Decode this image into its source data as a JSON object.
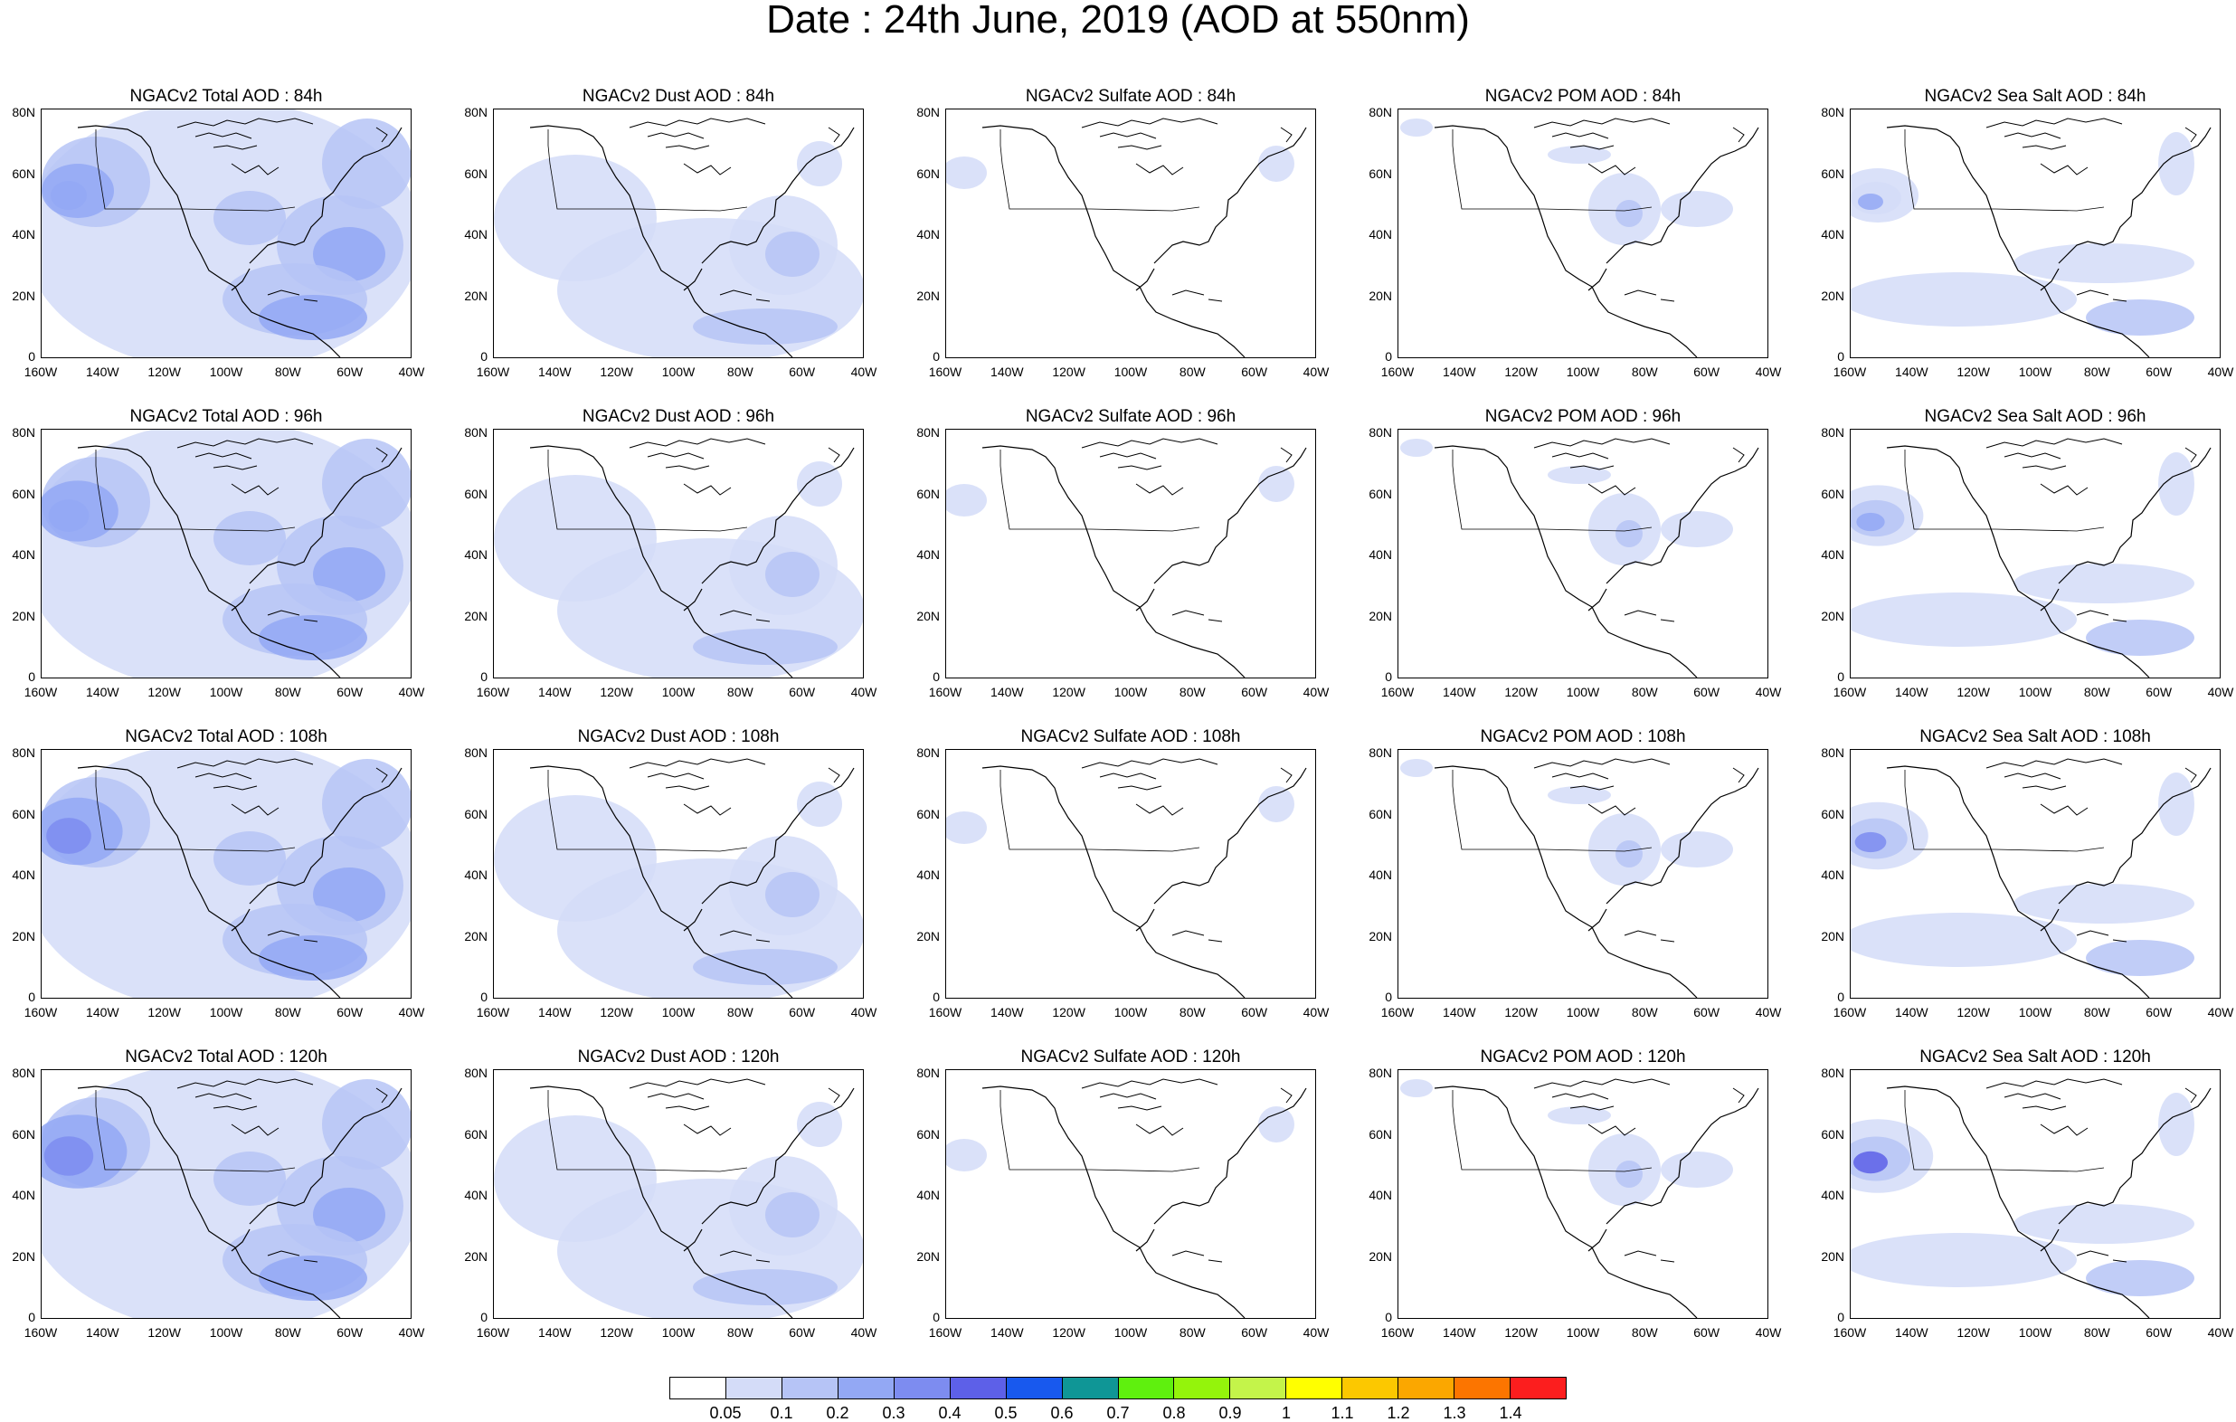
{
  "title": "Date : 24th June, 2019 (AOD at 550nm)",
  "panels": [
    [
      "NGACv2 Total AOD : 84h",
      "NGACv2 Dust AOD : 84h",
      "NGACv2 Sulfate AOD : 84h",
      "NGACv2 POM AOD : 84h",
      "NGACv2 Sea Salt AOD : 84h"
    ],
    [
      "NGACv2 Total AOD : 96h",
      "NGACv2 Dust AOD : 96h",
      "NGACv2 Sulfate AOD : 96h",
      "NGACv2 POM AOD : 96h",
      "NGACv2 Sea Salt AOD : 96h"
    ],
    [
      "NGACv2 Total AOD : 108h",
      "NGACv2 Dust AOD : 108h",
      "NGACv2 Sulfate AOD : 108h",
      "NGACv2 POM AOD : 108h",
      "NGACv2 Sea Salt AOD : 108h"
    ],
    [
      "NGACv2 Total AOD : 120h",
      "NGACv2 Dust AOD : 120h",
      "NGACv2 Sulfate AOD : 120h",
      "NGACv2 POM AOD : 120h",
      "NGACv2 Sea Salt  AOD : 120h"
    ]
  ],
  "lat_ticks": [
    "80N",
    "60N",
    "40N",
    "20N",
    "0"
  ],
  "lon_ticks": [
    "160W",
    "140W",
    "120W",
    "100W",
    "80W",
    "60W",
    "40W"
  ],
  "colorbar": {
    "colors": [
      "#ffffff",
      "#d4dcf8",
      "#b6c4f6",
      "#93a8f4",
      "#7d8cf0",
      "#5d60e8",
      "#1859ee",
      "#0f9696",
      "#5ff00e",
      "#94f40b",
      "#c4f44a",
      "#ffff00",
      "#fcc800",
      "#fba700",
      "#fc7500",
      "#fc1e1e"
    ],
    "labels": [
      "0.05",
      "0.1",
      "0.2",
      "0.3",
      "0.4",
      "0.5",
      "0.6",
      "0.7",
      "0.8",
      "0.9",
      "1",
      "1.1",
      "1.2",
      "1.3",
      "1.4"
    ]
  },
  "field_colors": {
    "light": "#d4dcf8",
    "mid": "#b6c4f6",
    "strong": "#93a8f4",
    "stronger": "#7d8cf0",
    "peak": "#5d60e8"
  }
}
